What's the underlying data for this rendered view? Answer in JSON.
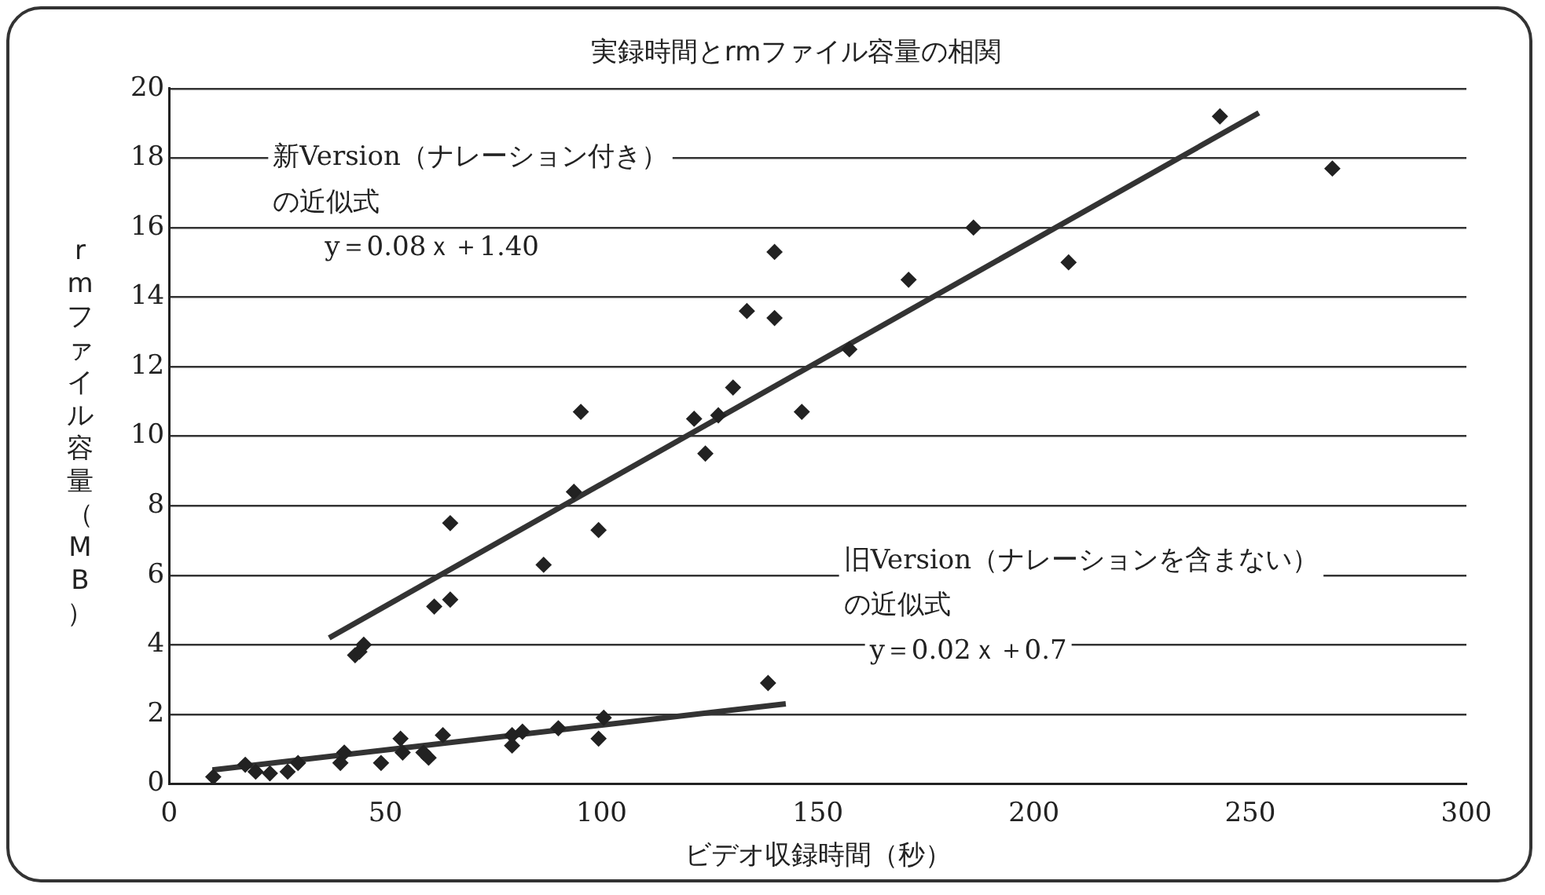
{
  "chart_data": {
    "type": "scatter",
    "title": "実録時間とrmファイル容量の相関",
    "xlabel": "ビデオ収録時間（秒）",
    "ylabel": "rmファイル容量（MB）",
    "xlim": [
      0,
      300
    ],
    "xticks": [
      0,
      50,
      100,
      150,
      200,
      250,
      300
    ],
    "ylim": [
      0,
      20
    ],
    "yticks": [
      0,
      2,
      4,
      6,
      8,
      10,
      12,
      14,
      16,
      18,
      20
    ],
    "grid": "y",
    "legend": false,
    "marker": "diamond",
    "annotations": [
      "新Version（ナレーション付き）",
      "の近似式",
      "y＝0.08ｘ＋1.40",
      "旧Version（ナレーションを含まない）",
      "の近似式",
      "y＝0.02ｘ＋0.7"
    ],
    "series": [
      {
        "type": "scatter",
        "color": "#222222",
        "x": [
          43,
          44,
          45,
          61.3,
          65,
          65,
          86.6,
          93.6,
          95.2,
          99.3,
          121.4,
          124,
          127,
          130.4,
          133.6,
          140,
          140,
          146.3,
          157.3,
          171,
          186,
          208,
          243,
          269
        ],
        "values": [
          3.7,
          3.8,
          4.0,
          5.1,
          5.3,
          7.5,
          6.3,
          8.4,
          10.7,
          7.3,
          10.5,
          9.5,
          10.6,
          11.4,
          13.6,
          15.3,
          13.4,
          10.7,
          12.5,
          14.5,
          16.0,
          15.0,
          19.2,
          17.7
        ]
      },
      {
        "type": "scatter",
        "color": "#222222",
        "x": [
          10.2,
          17.6,
          20,
          23.3,
          27.4,
          29.8,
          39.6,
          40.5,
          49,
          53.5,
          54,
          58.8,
          60,
          63.3,
          79.3,
          79.3,
          81.7,
          90,
          99.3,
          100.5,
          138.5
        ],
        "values": [
          0.2,
          0.55,
          0.35,
          0.3,
          0.35,
          0.6,
          0.6,
          0.9,
          0.6,
          1.3,
          0.9,
          0.9,
          0.75,
          1.4,
          1.1,
          1.4,
          1.5,
          1.6,
          1.3,
          1.9,
          2.9
        ]
      },
      {
        "type": "line",
        "color": "#333333",
        "line_style": "solid",
        "marker": "none",
        "x": [
          37,
          252
        ],
        "values": [
          4.2,
          19.3
        ]
      },
      {
        "type": "line",
        "color": "#333333",
        "line_style": "solid",
        "marker": "none",
        "x": [
          10,
          142.6
        ],
        "values": [
          0.4,
          2.3
        ]
      }
    ]
  }
}
